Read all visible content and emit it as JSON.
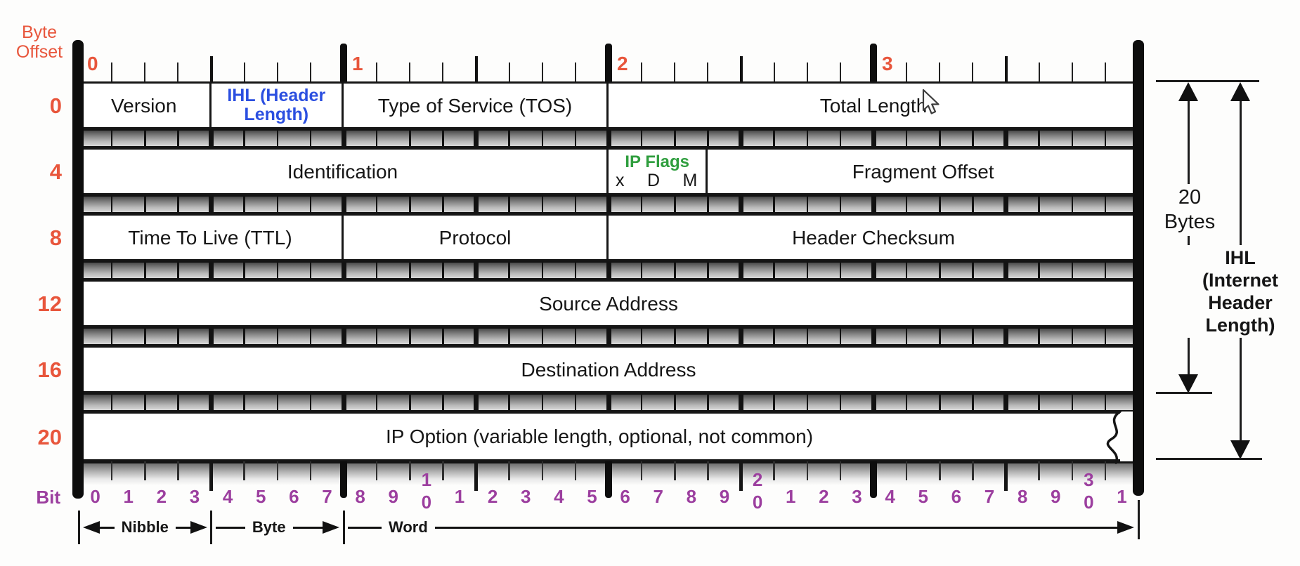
{
  "colors": {
    "offset_red": "#E8563C",
    "field_black": "#161616",
    "ihl_blue": "#2B4FE0",
    "flags_green": "#2F9E3E",
    "bit_purple": "#9C3F9F"
  },
  "corner": {
    "byte_offset": [
      "Byte",
      "Offset"
    ],
    "bit_label": "Bit"
  },
  "byte_ruler": {
    "numbers": [
      "0",
      "1",
      "2",
      "3"
    ]
  },
  "row_offsets": [
    "0",
    "4",
    "8",
    "12",
    "16",
    "20"
  ],
  "header_rows": [
    {
      "fields": [
        {
          "label": "Version",
          "bits": 4
        },
        {
          "label_lines": [
            "IHL (Header",
            "Length)"
          ],
          "bits": 4,
          "color": "blue"
        },
        {
          "label": "Type of Service (TOS)",
          "bits": 8
        },
        {
          "label": "Total Length",
          "bits": 16
        }
      ]
    },
    {
      "fields": [
        {
          "label": "Identification",
          "bits": 16
        },
        {
          "label": "IP Flags",
          "bits": 3,
          "color": "green",
          "flags": [
            "x",
            "D",
            "M"
          ]
        },
        {
          "label": "Fragment Offset",
          "bits": 13
        }
      ]
    },
    {
      "fields": [
        {
          "label": "Time To Live (TTL)",
          "bits": 8
        },
        {
          "label": "Protocol",
          "bits": 8
        },
        {
          "label": "Header Checksum",
          "bits": 16
        }
      ]
    },
    {
      "fields": [
        {
          "label": "Source Address",
          "bits": 32
        }
      ]
    },
    {
      "fields": [
        {
          "label": "Destination Address",
          "bits": 32
        }
      ]
    },
    {
      "fields": [
        {
          "label": "IP Option (variable length, optional, not common)",
          "bits": 32,
          "torn": true
        }
      ]
    }
  ],
  "bit_ruler": {
    "labels": [
      "0",
      "1",
      "2",
      "3",
      "4",
      "5",
      "6",
      "7",
      "8",
      "9",
      "10",
      "1",
      "2",
      "3",
      "4",
      "5",
      "6",
      "7",
      "8",
      "9",
      "20",
      "1",
      "2",
      "3",
      "4",
      "5",
      "6",
      "7",
      "8",
      "9",
      "30",
      "1"
    ]
  },
  "scales": [
    {
      "label": "Nibble",
      "span_bits": 4,
      "left_arrowhead": true,
      "right_arrowhead": true
    },
    {
      "label": "Byte",
      "span_bits": 4,
      "left_arrowhead": false,
      "right_arrowhead": true
    },
    {
      "label": "Word",
      "span_bits": 24,
      "left_arrowhead": false,
      "right_arrowhead": true
    }
  ],
  "annotations": {
    "total_size": [
      "20",
      "Bytes"
    ],
    "ihl": [
      "IHL",
      "(Internet",
      "Header",
      "Length)"
    ]
  }
}
